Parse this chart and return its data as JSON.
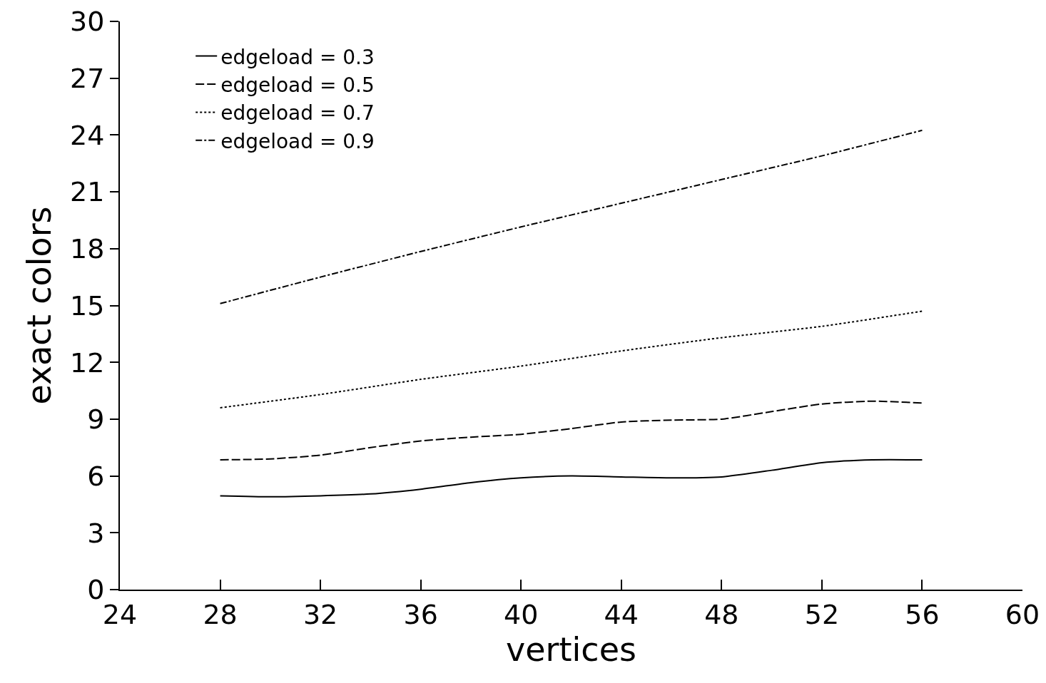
{
  "chart_data": {
    "type": "line",
    "xlabel": "vertices",
    "ylabel": "exact colors",
    "xlim": [
      24,
      60
    ],
    "xticks": [
      24,
      28,
      32,
      36,
      40,
      44,
      48,
      52,
      56,
      60
    ],
    "ylim": [
      0,
      30
    ],
    "yticks": [
      0,
      3,
      6,
      9,
      12,
      15,
      18,
      21,
      24,
      27,
      30
    ],
    "grid": false,
    "legend": "top left",
    "marker": "none",
    "series": [
      {
        "name": "edgeload = 0.3",
        "color": "#000000",
        "line_style": "solid",
        "x": [
          28,
          30,
          32,
          34,
          36,
          38,
          40,
          42,
          44,
          46,
          48,
          50,
          52,
          54,
          56
        ],
        "values": [
          4.95,
          4.9,
          4.95,
          5.05,
          5.3,
          5.65,
          5.9,
          6.0,
          5.95,
          5.9,
          5.95,
          6.3,
          6.7,
          6.85,
          6.85
        ]
      },
      {
        "name": "edgeload = 0.5",
        "color": "#000000",
        "line_style": "dashed",
        "x": [
          28,
          30,
          32,
          34,
          36,
          38,
          40,
          42,
          44,
          46,
          48,
          50,
          52,
          54,
          56
        ],
        "values": [
          6.85,
          6.9,
          7.1,
          7.5,
          7.85,
          8.05,
          8.2,
          8.5,
          8.85,
          8.95,
          9.0,
          9.4,
          9.8,
          9.95,
          9.85
        ]
      },
      {
        "name": "edgeload = 0.7",
        "color": "#000000",
        "line_style": "dotted",
        "x": [
          28,
          32,
          36,
          40,
          44,
          48,
          52,
          56
        ],
        "values": [
          9.6,
          10.3,
          11.1,
          11.8,
          12.6,
          13.3,
          13.9,
          14.7
        ]
      },
      {
        "name": "edgeload = 0.9",
        "color": "#000000",
        "line_style": "dashdot",
        "x": [
          28,
          32,
          36,
          40,
          44,
          48,
          52,
          56
        ],
        "values": [
          15.1,
          16.5,
          17.85,
          19.15,
          20.4,
          21.65,
          22.9,
          24.25
        ]
      }
    ]
  }
}
